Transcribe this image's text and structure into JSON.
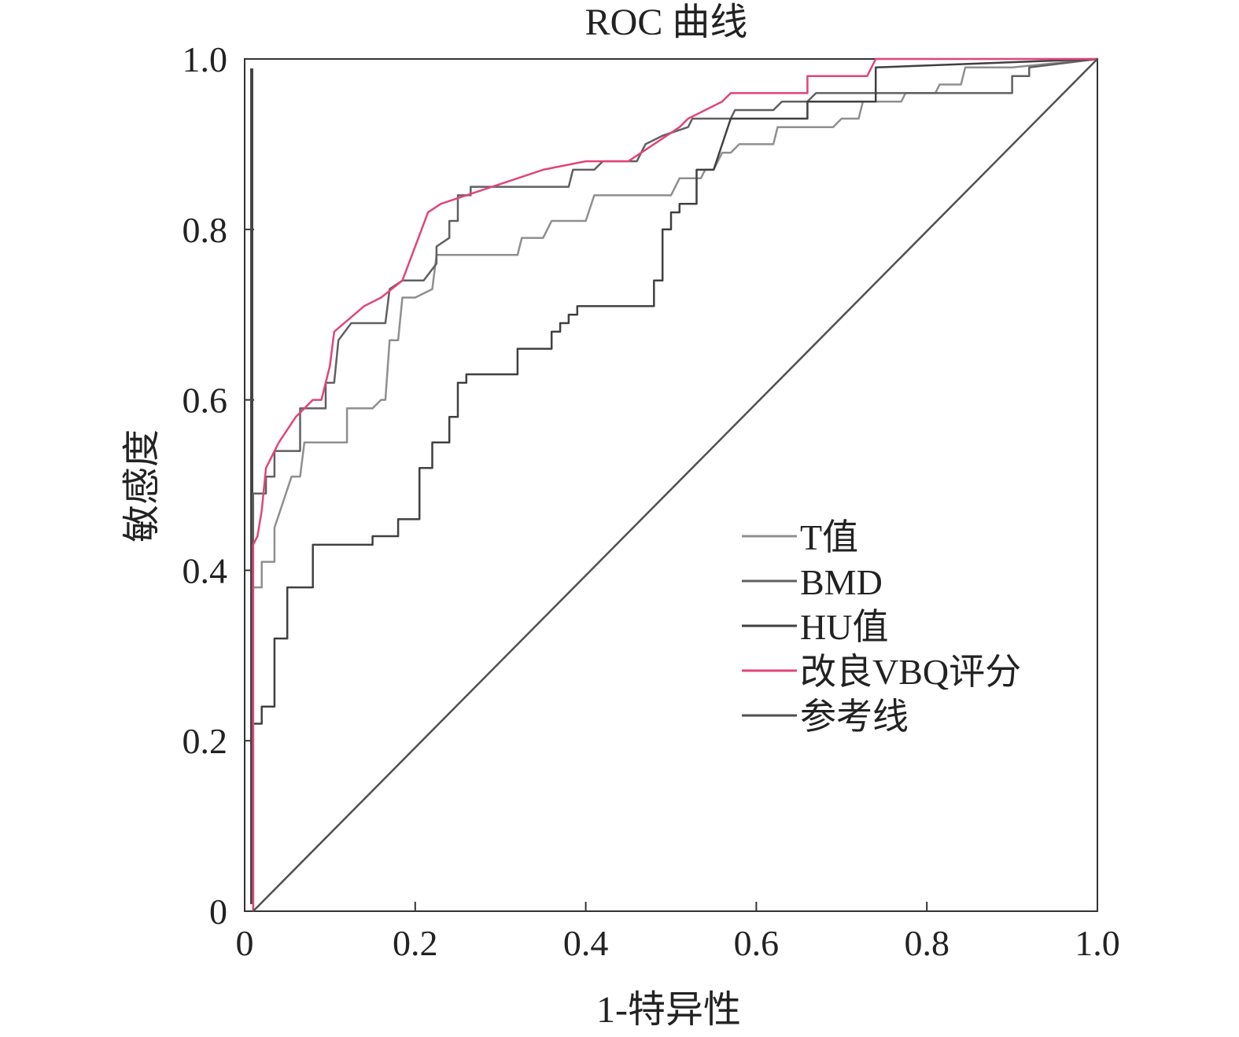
{
  "chart_data": {
    "type": "line",
    "title": "ROC 曲线",
    "xlabel": "1-特异性",
    "ylabel": "敏感度",
    "xlim": [
      0,
      1
    ],
    "ylim": [
      0,
      1
    ],
    "x_ticks": [
      "0",
      "0.2",
      "0.4",
      "0.6",
      "0.8",
      "1.0"
    ],
    "y_ticks": [
      "0",
      "0.2",
      "0.4",
      "0.6",
      "0.8",
      "1.0"
    ],
    "x_tick_values": [
      0,
      0.2,
      0.4,
      0.6,
      0.8,
      1.0
    ],
    "y_tick_values": [
      0,
      0.2,
      0.4,
      0.6,
      0.8,
      1.0
    ],
    "grid": false,
    "legend_position": "right-middle",
    "series": [
      {
        "name": "T值",
        "color": "#8f8f8f",
        "points": [
          [
            0.01,
            0
          ],
          [
            0.01,
            0.38
          ],
          [
            0.02,
            0.38
          ],
          [
            0.02,
            0.41
          ],
          [
            0.035,
            0.41
          ],
          [
            0.035,
            0.45
          ],
          [
            0.045,
            0.48
          ],
          [
            0.055,
            0.51
          ],
          [
            0.065,
            0.51
          ],
          [
            0.07,
            0.55
          ],
          [
            0.12,
            0.55
          ],
          [
            0.12,
            0.59
          ],
          [
            0.15,
            0.59
          ],
          [
            0.16,
            0.6
          ],
          [
            0.165,
            0.6
          ],
          [
            0.17,
            0.67
          ],
          [
            0.18,
            0.67
          ],
          [
            0.185,
            0.72
          ],
          [
            0.2,
            0.72
          ],
          [
            0.22,
            0.73
          ],
          [
            0.225,
            0.77
          ],
          [
            0.32,
            0.77
          ],
          [
            0.325,
            0.79
          ],
          [
            0.35,
            0.79
          ],
          [
            0.36,
            0.81
          ],
          [
            0.4,
            0.81
          ],
          [
            0.41,
            0.84
          ],
          [
            0.5,
            0.84
          ],
          [
            0.51,
            0.86
          ],
          [
            0.535,
            0.86
          ],
          [
            0.54,
            0.87
          ],
          [
            0.55,
            0.87
          ],
          [
            0.56,
            0.89
          ],
          [
            0.57,
            0.89
          ],
          [
            0.58,
            0.9
          ],
          [
            0.62,
            0.9
          ],
          [
            0.625,
            0.92
          ],
          [
            0.69,
            0.92
          ],
          [
            0.7,
            0.93
          ],
          [
            0.72,
            0.93
          ],
          [
            0.725,
            0.95
          ],
          [
            0.77,
            0.95
          ],
          [
            0.775,
            0.96
          ],
          [
            0.81,
            0.96
          ],
          [
            0.815,
            0.97
          ],
          [
            0.84,
            0.97
          ],
          [
            0.845,
            0.99
          ],
          [
            0.9,
            0.99
          ],
          [
            1.0,
            1.0
          ]
        ]
      },
      {
        "name": "BMD",
        "color": "#606060",
        "points": [
          [
            0.01,
            0
          ],
          [
            0.01,
            0.49
          ],
          [
            0.025,
            0.49
          ],
          [
            0.025,
            0.51
          ],
          [
            0.035,
            0.51
          ],
          [
            0.035,
            0.54
          ],
          [
            0.065,
            0.54
          ],
          [
            0.065,
            0.59
          ],
          [
            0.095,
            0.59
          ],
          [
            0.095,
            0.62
          ],
          [
            0.105,
            0.62
          ],
          [
            0.11,
            0.67
          ],
          [
            0.125,
            0.69
          ],
          [
            0.165,
            0.69
          ],
          [
            0.17,
            0.73
          ],
          [
            0.185,
            0.74
          ],
          [
            0.21,
            0.74
          ],
          [
            0.225,
            0.76
          ],
          [
            0.225,
            0.78
          ],
          [
            0.24,
            0.79
          ],
          [
            0.24,
            0.81
          ],
          [
            0.25,
            0.81
          ],
          [
            0.25,
            0.84
          ],
          [
            0.265,
            0.84
          ],
          [
            0.265,
            0.85
          ],
          [
            0.38,
            0.85
          ],
          [
            0.385,
            0.87
          ],
          [
            0.41,
            0.87
          ],
          [
            0.42,
            0.88
          ],
          [
            0.46,
            0.88
          ],
          [
            0.47,
            0.9
          ],
          [
            0.49,
            0.91
          ],
          [
            0.52,
            0.92
          ],
          [
            0.525,
            0.93
          ],
          [
            0.57,
            0.93
          ],
          [
            0.575,
            0.94
          ],
          [
            0.62,
            0.94
          ],
          [
            0.63,
            0.95
          ],
          [
            0.66,
            0.95
          ],
          [
            0.67,
            0.96
          ],
          [
            0.9,
            0.96
          ],
          [
            0.9,
            0.98
          ],
          [
            0.92,
            0.98
          ],
          [
            0.92,
            0.99
          ],
          [
            1.0,
            1.0
          ]
        ]
      },
      {
        "name": "HU值",
        "color": "#404040",
        "points": [
          [
            0.01,
            0
          ],
          [
            0.01,
            0.22
          ],
          [
            0.02,
            0.22
          ],
          [
            0.02,
            0.24
          ],
          [
            0.035,
            0.24
          ],
          [
            0.035,
            0.32
          ],
          [
            0.05,
            0.32
          ],
          [
            0.05,
            0.38
          ],
          [
            0.08,
            0.38
          ],
          [
            0.08,
            0.43
          ],
          [
            0.15,
            0.43
          ],
          [
            0.15,
            0.44
          ],
          [
            0.18,
            0.44
          ],
          [
            0.18,
            0.46
          ],
          [
            0.205,
            0.46
          ],
          [
            0.205,
            0.52
          ],
          [
            0.22,
            0.52
          ],
          [
            0.22,
            0.55
          ],
          [
            0.24,
            0.55
          ],
          [
            0.24,
            0.58
          ],
          [
            0.25,
            0.58
          ],
          [
            0.25,
            0.62
          ],
          [
            0.26,
            0.62
          ],
          [
            0.26,
            0.63
          ],
          [
            0.32,
            0.63
          ],
          [
            0.32,
            0.66
          ],
          [
            0.36,
            0.66
          ],
          [
            0.36,
            0.68
          ],
          [
            0.37,
            0.68
          ],
          [
            0.37,
            0.69
          ],
          [
            0.38,
            0.69
          ],
          [
            0.38,
            0.7
          ],
          [
            0.39,
            0.7
          ],
          [
            0.39,
            0.71
          ],
          [
            0.48,
            0.71
          ],
          [
            0.48,
            0.74
          ],
          [
            0.49,
            0.74
          ],
          [
            0.49,
            0.8
          ],
          [
            0.5,
            0.8
          ],
          [
            0.5,
            0.82
          ],
          [
            0.51,
            0.82
          ],
          [
            0.51,
            0.83
          ],
          [
            0.53,
            0.83
          ],
          [
            0.53,
            0.87
          ],
          [
            0.55,
            0.87
          ],
          [
            0.57,
            0.93
          ],
          [
            0.66,
            0.93
          ],
          [
            0.66,
            0.95
          ],
          [
            0.74,
            0.95
          ],
          [
            0.74,
            0.99
          ],
          [
            1.0,
            1.0
          ]
        ]
      },
      {
        "name": "改良VBQ评分",
        "color": "#e0457a",
        "points": [
          [
            0.01,
            0
          ],
          [
            0.01,
            0.43
          ],
          [
            0.015,
            0.44
          ],
          [
            0.02,
            0.47
          ],
          [
            0.025,
            0.52
          ],
          [
            0.04,
            0.55
          ],
          [
            0.06,
            0.58
          ],
          [
            0.08,
            0.6
          ],
          [
            0.09,
            0.6
          ],
          [
            0.1,
            0.64
          ],
          [
            0.105,
            0.68
          ],
          [
            0.14,
            0.71
          ],
          [
            0.16,
            0.72
          ],
          [
            0.185,
            0.74
          ],
          [
            0.215,
            0.82
          ],
          [
            0.23,
            0.83
          ],
          [
            0.35,
            0.87
          ],
          [
            0.4,
            0.88
          ],
          [
            0.45,
            0.88
          ],
          [
            0.48,
            0.9
          ],
          [
            0.51,
            0.92
          ],
          [
            0.52,
            0.93
          ],
          [
            0.56,
            0.95
          ],
          [
            0.57,
            0.96
          ],
          [
            0.66,
            0.96
          ],
          [
            0.66,
            0.98
          ],
          [
            0.73,
            0.98
          ],
          [
            0.74,
            1.0
          ],
          [
            1.0,
            1.0
          ]
        ]
      },
      {
        "name": "参考线",
        "color": "#505050",
        "points": [
          [
            0.01,
            0
          ],
          [
            1.0,
            1.0
          ]
        ]
      }
    ]
  }
}
